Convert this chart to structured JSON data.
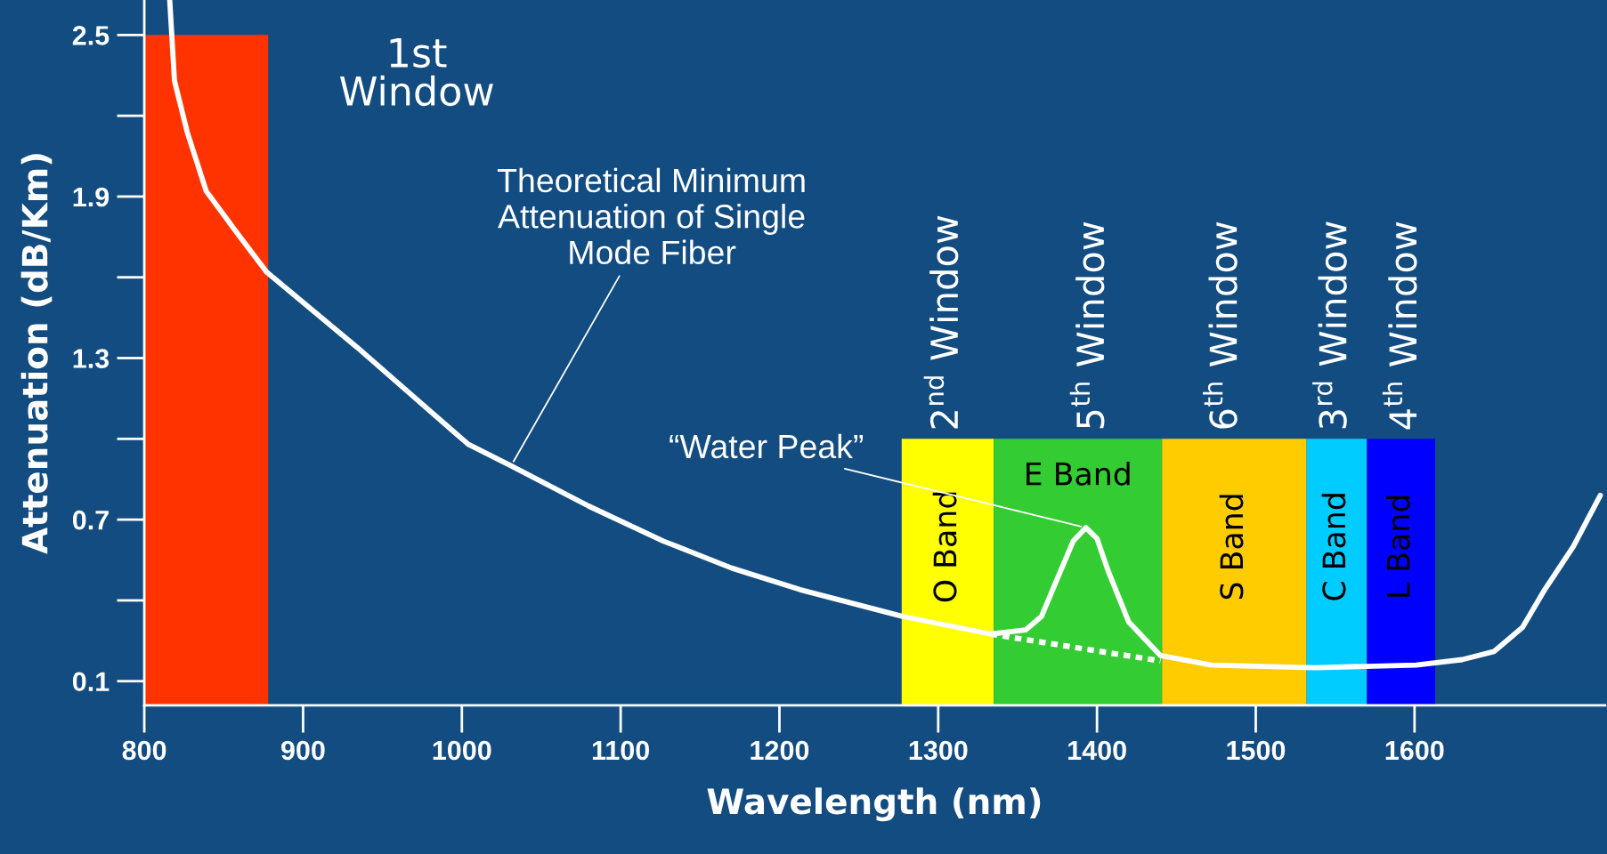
{
  "chart_data": {
    "type": "line",
    "xlabel": "Wavelength (nm)",
    "ylabel": "Attenuation (dB/Km)",
    "xlim": [
      800,
      1720
    ],
    "ylim": [
      0.01,
      2.63
    ],
    "xticks": [
      800,
      900,
      1000,
      1100,
      1200,
      1300,
      1400,
      1500,
      1600
    ],
    "yticks": [
      0.1,
      0.7,
      1.3,
      1.9,
      2.5
    ],
    "grid": false,
    "legend": false,
    "series": [
      {
        "type": "area",
        "name": "1st Window",
        "color": "#ff3300",
        "x": [
          800,
          878
        ],
        "values": [
          2.5,
          2.5
        ]
      },
      {
        "type": "area",
        "name": "O Band",
        "color": "#ffff00",
        "x": [
          1277,
          1335
        ],
        "values": [
          1.0,
          1.0
        ]
      },
      {
        "type": "area",
        "name": "E Band",
        "color": "#33cc33",
        "x": [
          1335,
          1441
        ],
        "values": [
          1.0,
          1.0
        ]
      },
      {
        "type": "area",
        "name": "S Band",
        "color": "#ffcc00",
        "x": [
          1441,
          1532
        ],
        "values": [
          1.0,
          1.0
        ]
      },
      {
        "type": "area",
        "name": "C Band",
        "color": "#00ccff",
        "x": [
          1532,
          1570
        ],
        "values": [
          1.0,
          1.0
        ]
      },
      {
        "type": "area",
        "name": "L Band",
        "color": "#0000ff",
        "x": [
          1570,
          1613
        ],
        "values": [
          1.0,
          1.0
        ]
      },
      {
        "color": "#ffffff",
        "line_style": "solid",
        "x": [
          816,
          819,
          827,
          839,
          859,
          877,
          934,
          967,
          1004,
          1031,
          1080,
          1127,
          1170,
          1213,
          1278,
          1333,
          1355,
          1365,
          1375,
          1385,
          1393,
          1400,
          1407,
          1420,
          1440,
          1472,
          1537,
          1601,
          1630,
          1650,
          1668,
          1682,
          1700,
          1717
        ],
        "values": [
          2.63,
          2.33,
          2.14,
          1.92,
          1.76,
          1.62,
          1.34,
          1.17,
          0.98,
          0.9,
          0.75,
          0.62,
          0.52,
          0.44,
          0.34,
          0.275,
          0.29,
          0.34,
          0.48,
          0.62,
          0.67,
          0.63,
          0.51,
          0.32,
          0.195,
          0.16,
          0.15,
          0.16,
          0.18,
          0.21,
          0.3,
          0.44,
          0.6,
          0.79
        ]
      },
      {
        "color": "#ffffff",
        "line_style": "dotted",
        "x": [
          1333,
          1440
        ],
        "values": [
          0.275,
          0.175
        ]
      }
    ],
    "annotations": [
      "2$^{nd}$ Window",
      "5$^{th}$ Window",
      "6$^{th}$ Window",
      "3$^{rd}$ Window",
      "4$^{th}$ Window",
      {
        "text": "Theoretical Minimum\nAttenuation of Single\nMode Fiber",
        "x": 1031,
        "y": 0.9
      },
      {
        "text": "“Water Peak”",
        "x": 1393,
        "y": 0.67
      }
    ]
  }
}
